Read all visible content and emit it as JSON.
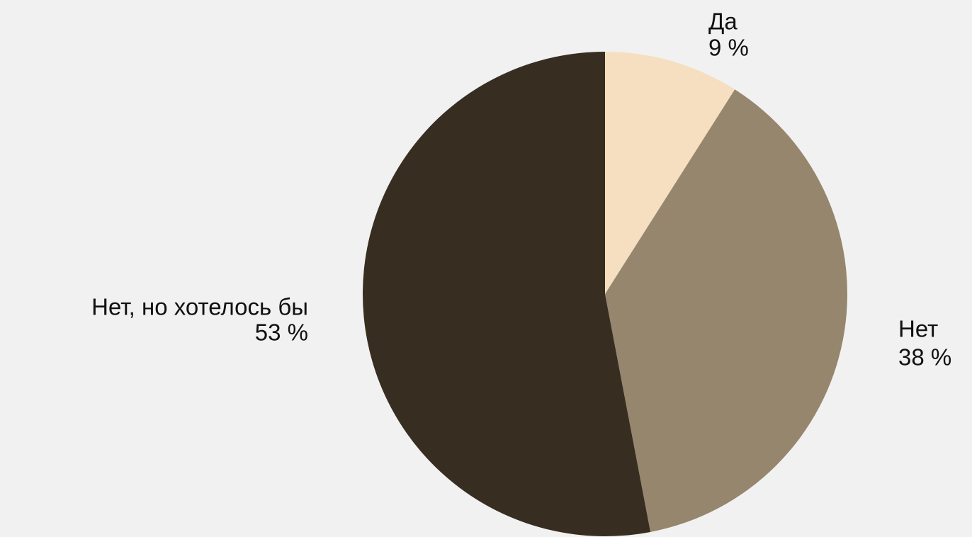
{
  "chart_data": {
    "type": "pie",
    "categories": [
      "Да",
      "Нет",
      "Нет, но хотелось бы"
    ],
    "values": [
      9,
      38,
      53
    ],
    "value_labels": [
      "9 %",
      "38 %",
      "53 %"
    ],
    "colors": [
      "#f5dfc0",
      "#96866d",
      "#372d20"
    ]
  }
}
